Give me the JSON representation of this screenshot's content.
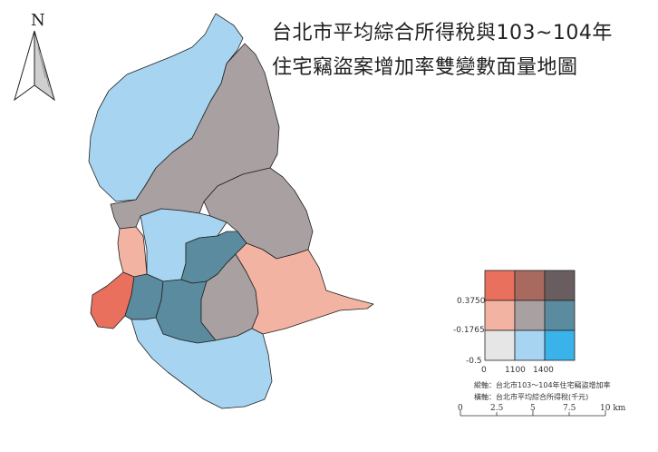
{
  "title": {
    "line1": "台北市平均綜合所得稅與103~104年",
    "line2": "住宅竊盜案增加率雙變數面量地圖"
  },
  "north_arrow": {
    "label": "N",
    "icon": "north-arrow-icon"
  },
  "legend": {
    "colors": [
      [
        "#e8705c",
        "#a8695f",
        "#6a5d5f"
      ],
      [
        "#f2b3a2",
        "#a9a1a1",
        "#5b8b9e"
      ],
      [
        "#e6e6e6",
        "#a6d4f1",
        "#3ab3ea"
      ]
    ],
    "y_ticks": [
      "0.3750",
      "-0.1765",
      "-0.5"
    ],
    "x_ticks": [
      "0",
      "1100",
      "1400"
    ],
    "y_axis_note": "縱軸：台北市103～104年住宅竊盜增加率",
    "x_axis_note": "橫軸：台北市平均綜合所得稅(千元)"
  },
  "scale_bar": {
    "labels": [
      "0",
      "2.5",
      "5",
      "7.5",
      "10 km"
    ]
  },
  "district_colors": {
    "beitou": "#a6d4f1",
    "shilin": "#a9a1a1",
    "neihu": "#a9a1a1",
    "zhongshan": "#a6d4f1",
    "songshan": "#5b8b9e",
    "datong": "#f2b3a2",
    "wanhua": "#e8705c",
    "zhongzheng": "#5b8b9e",
    "daan": "#5b8b9e",
    "xinyi": "#a9a1a1",
    "nangang": "#f2b3a2",
    "wenshan": "#a6d4f1"
  }
}
